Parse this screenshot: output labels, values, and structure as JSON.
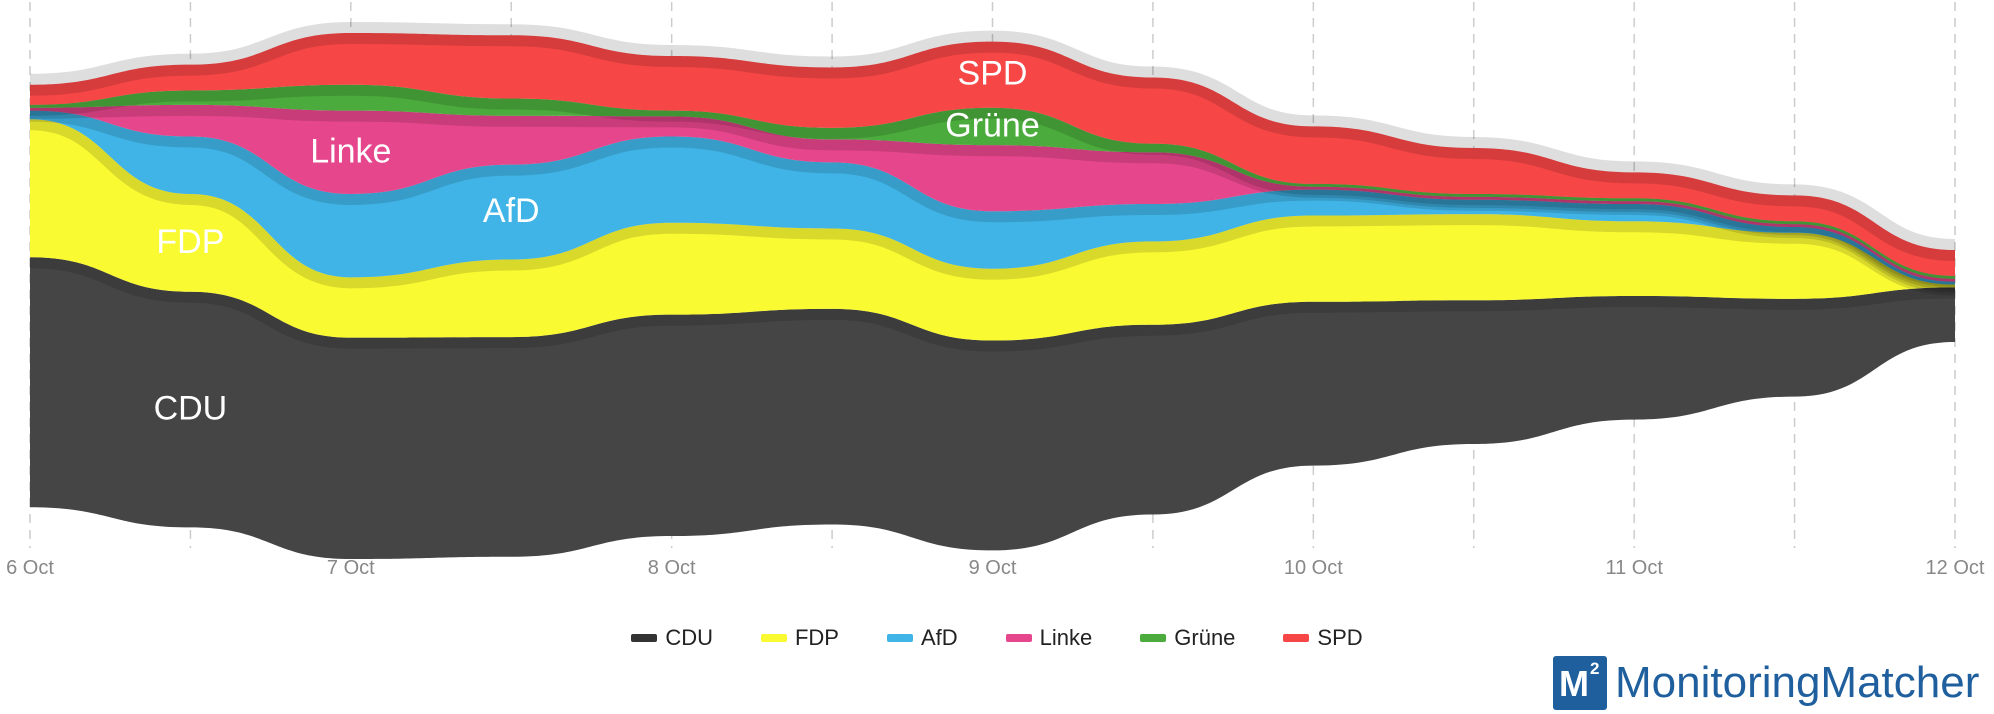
{
  "chart_data": {
    "type": "area",
    "stacked": true,
    "x": [
      "6 Oct",
      "6.5",
      "7 Oct",
      "7.5",
      "8 Oct",
      "8.5",
      "9 Oct",
      "9.5",
      "10 Oct",
      "10.5",
      "11 Oct",
      "11.5",
      "12 Oct"
    ],
    "x_ticks": [
      "6 Oct",
      "7 Oct",
      "8 Oct",
      "9 Oct",
      "10 Oct",
      "11 Oct",
      "12 Oct"
    ],
    "series": [
      {
        "name": "CDU",
        "color": "#454545",
        "values": [
          43.5,
          41,
          38.5,
          38.2,
          38.5,
          37.5,
          36.5,
          33,
          28.5,
          25,
          21.5,
          17,
          9.5
        ]
      },
      {
        "name": "FDP",
        "color": "#fafa32",
        "values": [
          24,
          17,
          10.5,
          13.5,
          16,
          14,
          12.5,
          14.5,
          15,
          15,
          13,
          11.5,
          0.5
        ]
      },
      {
        "name": "AfD",
        "color": "#40b4e6",
        "values": [
          1.5,
          10,
          14.5,
          16.5,
          15,
          11.5,
          10,
          6.5,
          4.5,
          2.5,
          3,
          1,
          0.5
        ]
      },
      {
        "name": "Linke",
        "color": "#e6468c",
        "values": [
          0.5,
          5.5,
          14.5,
          8.5,
          3.5,
          4,
          11.5,
          9,
          0.5,
          0.5,
          0.5,
          0.5,
          0.5
        ]
      },
      {
        "name": "Grüne",
        "color": "#4bab3c",
        "values": [
          0.5,
          2.5,
          4.5,
          3,
          1,
          2,
          6.5,
          1.5,
          0.5,
          0.5,
          0.5,
          0.5,
          0.5
        ]
      },
      {
        "name": "SPD",
        "color": "#f64646",
        "values": [
          3.5,
          4.5,
          9,
          11,
          9.5,
          10.5,
          11.5,
          11.5,
          10,
          8,
          4.5,
          4.5,
          4.5
        ]
      }
    ],
    "area_labels": [
      {
        "series": "CDU",
        "text": "CDU"
      },
      {
        "series": "FDP",
        "text": "FDP"
      },
      {
        "series": "AfD",
        "text": "AfD"
      },
      {
        "series": "Linke",
        "text": "Linke"
      },
      {
        "series": "Grüne",
        "text": "Grüne"
      },
      {
        "series": "SPD",
        "text": "SPD"
      }
    ],
    "legend_position": "bottom-center",
    "grid": "vertical dashed"
  },
  "legend": {
    "items": [
      {
        "label": "CDU",
        "color": "#333333"
      },
      {
        "label": "FDP",
        "color": "#fafa32"
      },
      {
        "label": "AfD",
        "color": "#40b4e6"
      },
      {
        "label": "Linke",
        "color": "#e6468c"
      },
      {
        "label": "Grüne",
        "color": "#4bab3c"
      },
      {
        "label": "SPD",
        "color": "#f64646"
      }
    ]
  },
  "branding": {
    "logo_mark": "M",
    "logo_superscript": "2",
    "logo_text": "MonitoringMatcher",
    "logo_color": "#1f5f9e"
  }
}
